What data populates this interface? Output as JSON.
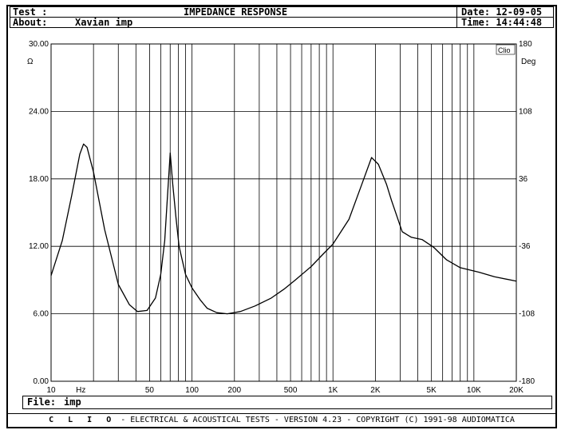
{
  "header": {
    "test_label": "Test :",
    "title": "IMPEDANCE RESPONSE",
    "about_label": "About:",
    "about_value": "Xavian imp",
    "date": "Date: 12-09-05",
    "time": "Time: 14:44:48"
  },
  "file": {
    "label": "File:",
    "value": "imp"
  },
  "footer": {
    "brand": "C L I O",
    "text": "-  ELECTRICAL & ACOUSTICAL TESTS  -  VERSION 4.23  -  COPYRIGHT (C) 1991-98 AUDIOMATICA"
  },
  "logo": "Clio",
  "chart_data": {
    "type": "line",
    "title": "IMPEDANCE RESPONSE",
    "xlabel": "Hz",
    "ylabel": "Ω",
    "y2label": "Deg",
    "xscale": "log",
    "xlim": [
      10,
      20000
    ],
    "ylim": [
      0,
      30
    ],
    "y2lim": [
      -180,
      180
    ],
    "x_ticks": [
      {
        "v": 10,
        "l": "10"
      },
      {
        "v": 50,
        "l": "50"
      },
      {
        "v": 100,
        "l": "100"
      },
      {
        "v": 200,
        "l": "200"
      },
      {
        "v": 500,
        "l": "500"
      },
      {
        "v": 1000,
        "l": "1K"
      },
      {
        "v": 2000,
        "l": "2K"
      },
      {
        "v": 5000,
        "l": "5K"
      },
      {
        "v": 10000,
        "l": "10K"
      },
      {
        "v": 20000,
        "l": "20K"
      }
    ],
    "y_ticks": [
      "0.00",
      "6.00",
      "12.00",
      "18.00",
      "24.00",
      "30.00"
    ],
    "y2_ticks": [
      "-180",
      "-108",
      "-36",
      "36",
      "108",
      "180"
    ],
    "grid": true,
    "series": [
      {
        "name": "Impedance",
        "x": [
          10,
          12,
          14,
          16,
          17,
          18,
          20,
          24,
          30,
          36,
          41,
          48,
          55,
          60,
          64,
          67,
          70,
          73,
          77,
          81,
          90,
          100,
          115,
          128,
          150,
          178,
          220,
          280,
          365,
          450,
          540,
          700,
          850,
          1000,
          1300,
          1600,
          1880,
          2100,
          2400,
          2600,
          3100,
          3600,
          4300,
          5200,
          6400,
          8000,
          10900,
          14000,
          20000
        ],
        "y": [
          9.4,
          12.5,
          16.5,
          20.2,
          21.1,
          20.8,
          18.6,
          13.5,
          8.6,
          6.8,
          6.2,
          6.3,
          7.4,
          9.5,
          12.5,
          16.5,
          20.3,
          17.5,
          14.5,
          12.0,
          9.5,
          8.3,
          7.2,
          6.5,
          6.1,
          6.0,
          6.2,
          6.7,
          7.4,
          8.2,
          9.0,
          10.2,
          11.3,
          12.2,
          14.4,
          17.5,
          19.9,
          19.3,
          17.5,
          16.1,
          13.3,
          12.8,
          12.6,
          11.9,
          10.8,
          10.1,
          9.7,
          9.3,
          8.9
        ]
      }
    ]
  }
}
